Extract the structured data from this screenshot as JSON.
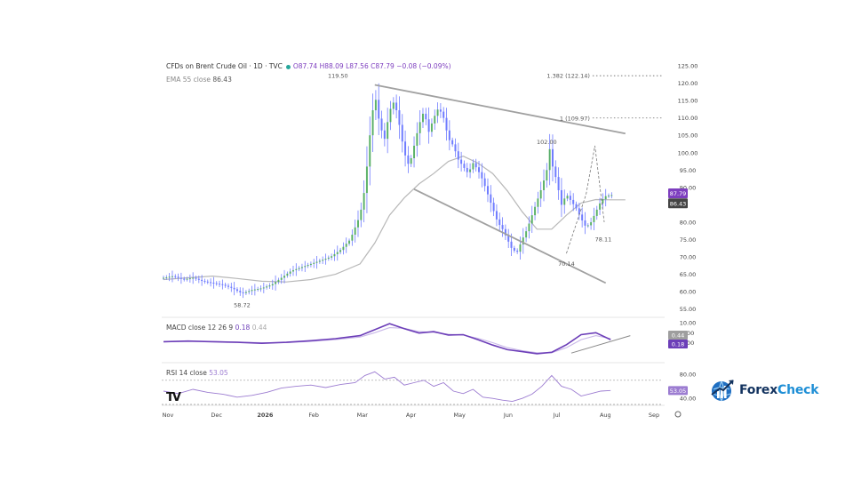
{
  "header": {
    "symbol": "CFDs on Brent Crude Oil · 1D · TVC",
    "ohlc": "O87.74 H88.09 L87.56 C87.79 −0.08 (−0.09%)",
    "ema_label": "EMA 55 close",
    "ema_value": "86.43",
    "macd_label": "MACD close 12 26 9",
    "macd_v1": "0.18",
    "macd_v2": "0.44",
    "rsi_label": "RSI 14 close",
    "rsi_value": "53.05"
  },
  "brand": {
    "part1": "Forex",
    "part2": "Check",
    "icon": "globe-chart-icon"
  },
  "tv_logo": "TV",
  "colors": {
    "candle": "#6f7cff",
    "ema": "#b8b8b8",
    "macd": "#6c3eb8",
    "price_tag": "#7e3fbf",
    "trend": "#a0a0a0"
  },
  "chart_data": {
    "type": "line",
    "title": "CFDs on Brent Crude Oil · 1D · TVC",
    "price_axis": {
      "ticks": [
        125,
        120,
        115,
        110,
        105,
        100,
        95,
        90,
        85,
        80,
        75,
        70,
        65,
        60,
        55
      ],
      "tick_labels": [
        "125.00",
        "120.00",
        "115.00",
        "110.00",
        "105.00",
        "100.00",
        "95.00",
        "90.00",
        "",
        "80.00",
        "75.00",
        "70.00",
        "65.00",
        "60.00",
        "55.00"
      ],
      "ylim": [
        53,
        126
      ]
    },
    "macd_axis": {
      "tick_labels": [
        "10.00",
        "5.00",
        "0.00"
      ]
    },
    "rsi_axis": {
      "tick_labels": [
        "80.00",
        "",
        "40.00"
      ]
    },
    "time_axis": {
      "labels": [
        "Nov",
        "Dec",
        "2026",
        "Feb",
        "Mar",
        "Apr",
        "May",
        "Jun",
        "Jul",
        "Aug",
        "Sep"
      ]
    },
    "price_tags": [
      {
        "label": "87.79",
        "value": 87.79,
        "color": "#7e3fbf"
      },
      {
        "label": "86.43",
        "value": 86.43,
        "color": "#444444"
      }
    ],
    "macd_tags": [
      {
        "label": "0.44",
        "value": 0.44,
        "color": "#9e9e9e"
      },
      {
        "label": "0.18",
        "value": 0.18,
        "color": "#6c3eb8"
      }
    ],
    "rsi_tags": [
      {
        "label": "53.05",
        "value": 53.05,
        "color": "#9c7cd1"
      }
    ],
    "annotations": [
      {
        "label": "119.50",
        "t": 3.55,
        "value": 121.5
      },
      {
        "label": "102.00",
        "t": 7.8,
        "value": 102.5
      },
      {
        "label": "78.11",
        "t": 8.95,
        "value": 74.5
      },
      {
        "label": "70.14",
        "t": 8.2,
        "value": 67.5
      },
      {
        "label": "58.72",
        "t": 1.6,
        "value": 55.5
      }
    ],
    "fib_levels": [
      {
        "label": "1.382 (122.14)",
        "value": 122.14
      },
      {
        "label": "1 (109.97)",
        "value": 109.97
      }
    ],
    "trendlines": [
      {
        "name": "upper",
        "points": [
          [
            4.3,
            119.5
          ],
          [
            9.4,
            105.5
          ]
        ]
      },
      {
        "name": "lower",
        "points": [
          [
            5.1,
            89.5
          ],
          [
            9.0,
            62.5
          ]
        ]
      }
    ],
    "ema55": {
      "t": [
        0,
        0.5,
        1,
        1.5,
        2,
        2.5,
        3,
        3.5,
        4,
        4.3,
        4.6,
        4.9,
        5.2,
        5.5,
        5.8,
        6.1,
        6.4,
        6.7,
        7.0,
        7.3,
        7.6,
        7.9,
        8.2,
        8.5,
        8.8,
        9.1,
        9.4
      ],
      "values": [
        63.5,
        64,
        64.5,
        63.8,
        63,
        62.8,
        63.5,
        65,
        68,
        74,
        82,
        87,
        91,
        94,
        97.5,
        99,
        97,
        94,
        89,
        83,
        78,
        78,
        82,
        85.5,
        86.5,
        86.43,
        86.43
      ]
    },
    "price": {
      "t": [
        0,
        0.2,
        0.4,
        0.6,
        0.8,
        1.0,
        1.2,
        1.4,
        1.6,
        1.8,
        2.0,
        2.2,
        2.4,
        2.6,
        2.8,
        3.0,
        3.2,
        3.4,
        3.6,
        3.8,
        4.0,
        4.1,
        4.2,
        4.3,
        4.4,
        4.5,
        4.6,
        4.7,
        4.8,
        4.9,
        5.0,
        5.1,
        5.2,
        5.3,
        5.4,
        5.5,
        5.6,
        5.7,
        5.8,
        5.9,
        6.0,
        6.1,
        6.2,
        6.3,
        6.4,
        6.5,
        6.6,
        6.7,
        6.8,
        6.9,
        7.0,
        7.1,
        7.2,
        7.3,
        7.4,
        7.5,
        7.6,
        7.7,
        7.8,
        7.85,
        7.9,
        8.0,
        8.1,
        8.2,
        8.3,
        8.4,
        8.5,
        8.6,
        8.7,
        8.8,
        8.9,
        9.0,
        9.1,
        9.2
      ],
      "values": [
        64,
        64.5,
        63.5,
        64,
        63,
        62.5,
        62,
        61,
        59.5,
        60.5,
        61,
        62,
        64,
        66,
        67,
        68,
        69,
        70,
        72,
        75,
        82,
        90,
        105,
        117,
        108,
        104,
        112,
        115,
        108,
        100,
        96,
        102,
        108,
        112,
        106,
        110,
        113,
        110,
        104,
        102,
        98,
        96,
        94,
        97,
        95,
        92,
        88,
        84,
        80,
        78,
        75,
        72,
        71.5,
        75,
        78,
        82,
        86,
        90,
        95,
        102,
        97,
        92,
        85,
        88,
        86,
        84,
        81,
        78.5,
        80,
        83,
        86,
        87.5,
        87.79,
        87.79
      ]
    },
    "macd": {
      "t": [
        0,
        0.5,
        1,
        1.5,
        2,
        2.5,
        3,
        3.5,
        4,
        4.3,
        4.6,
        4.9,
        5.2,
        5.5,
        5.8,
        6.1,
        6.4,
        6.7,
        7.0,
        7.3,
        7.6,
        7.9,
        8.2,
        8.5,
        8.8,
        9.1
      ],
      "values": [
        0.5,
        0.8,
        0.5,
        0.2,
        -0.3,
        0.2,
        1.0,
        2.0,
        3.5,
        6.5,
        9.5,
        7.0,
        4.8,
        5.5,
        3.8,
        4.0,
        1.5,
        -1.2,
        -3.5,
        -4.5,
        -5.5,
        -4.8,
        -1.0,
        4.0,
        5.0,
        1.5
      ]
    },
    "macd_signal": {
      "t": [
        0,
        0.5,
        1,
        1.5,
        2,
        2.5,
        3,
        3.5,
        4,
        4.3,
        4.6,
        4.9,
        5.2,
        5.5,
        5.8,
        6.1,
        6.4,
        6.7,
        7.0,
        7.3,
        7.6,
        7.9,
        8.2,
        8.5,
        8.8,
        9.1
      ],
      "values": [
        0.4,
        0.6,
        0.6,
        0.3,
        0.0,
        0.0,
        0.6,
        1.5,
        2.8,
        5.0,
        7.5,
        7.2,
        5.5,
        5.2,
        4.2,
        3.8,
        2.2,
        0.0,
        -2.5,
        -4.0,
        -5.0,
        -5.0,
        -2.5,
        1.5,
        3.5,
        2.0
      ]
    },
    "rsi": {
      "t": [
        0,
        0.3,
        0.6,
        0.9,
        1.2,
        1.5,
        1.8,
        2.1,
        2.4,
        2.7,
        3.0,
        3.3,
        3.6,
        3.9,
        4.1,
        4.3,
        4.5,
        4.7,
        4.9,
        5.1,
        5.3,
        5.5,
        5.7,
        5.9,
        6.1,
        6.3,
        6.5,
        6.7,
        6.9,
        7.1,
        7.3,
        7.5,
        7.7,
        7.9,
        8.1,
        8.3,
        8.5,
        8.7,
        8.9,
        9.1
      ],
      "values": [
        52,
        48,
        55,
        50,
        47,
        42,
        45,
        50,
        57,
        60,
        62,
        58,
        63,
        66,
        78,
        84,
        72,
        75,
        62,
        66,
        70,
        60,
        66,
        52,
        48,
        55,
        42,
        40,
        37,
        35,
        40,
        47,
        60,
        78,
        60,
        55,
        44,
        48,
        52,
        53.05
      ]
    },
    "grid": false,
    "legend": "top-left"
  }
}
